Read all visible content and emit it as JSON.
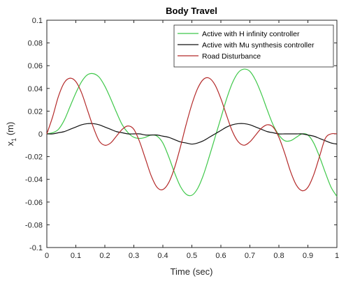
{
  "chart_data": {
    "type": "line",
    "title": "Body Travel",
    "xlabel": "Time (sec)",
    "ylabel_main": "x",
    "ylabel_sub": "1",
    "ylabel_unit": " (m)",
    "xlim": [
      0,
      1
    ],
    "ylim": [
      -0.1,
      0.1
    ],
    "xticks": [
      0,
      0.1,
      0.2,
      0.3,
      0.4,
      0.5,
      0.6,
      0.7,
      0.8,
      0.9,
      1
    ],
    "xtick_labels": [
      "0",
      "0.1",
      "0.2",
      "0.3",
      "0.4",
      "0.5",
      "0.6",
      "0.7",
      "0.8",
      "0.9",
      "1"
    ],
    "yticks": [
      -0.1,
      -0.08,
      -0.06,
      -0.04,
      -0.02,
      0,
      0.02,
      0.04,
      0.06,
      0.08,
      0.1
    ],
    "ytick_labels": [
      "-0.1",
      "-0.08",
      "-0.06",
      "-0.04",
      "-0.02",
      "0",
      "0.02",
      "0.04",
      "0.06",
      "0.08",
      "0.1"
    ],
    "grid": false,
    "legend_position": "top-right",
    "series": [
      {
        "name": "Active with H infinity controller",
        "color": "#3fc84a",
        "x": [
          0,
          0.02,
          0.04,
          0.06,
          0.08,
          0.1,
          0.12,
          0.14,
          0.16,
          0.18,
          0.2,
          0.22,
          0.24,
          0.26,
          0.28,
          0.3,
          0.32,
          0.34,
          0.36,
          0.38,
          0.4,
          0.42,
          0.44,
          0.46,
          0.48,
          0.5,
          0.52,
          0.54,
          0.56,
          0.58,
          0.6,
          0.62,
          0.64,
          0.66,
          0.68,
          0.7,
          0.72,
          0.74,
          0.76,
          0.78,
          0.8,
          0.82,
          0.84,
          0.86,
          0.88,
          0.9,
          0.92,
          0.94,
          0.96,
          0.98,
          1
        ],
        "y": [
          0,
          0.001,
          0.004,
          0.012,
          0.024,
          0.036,
          0.046,
          0.052,
          0.053,
          0.05,
          0.042,
          0.031,
          0.019,
          0.008,
          0.001,
          -0.003,
          -0.004,
          -0.003,
          -0.001,
          -0.002,
          -0.008,
          -0.02,
          -0.034,
          -0.046,
          -0.053,
          -0.054,
          -0.048,
          -0.036,
          -0.02,
          -0.003,
          0.014,
          0.031,
          0.045,
          0.054,
          0.057,
          0.055,
          0.047,
          0.035,
          0.021,
          0.008,
          -0.001,
          -0.006,
          -0.006,
          -0.003,
          0,
          -0.001,
          -0.008,
          -0.02,
          -0.034,
          -0.047,
          -0.055
        ]
      },
      {
        "name": "Active with Mu synthesis controller",
        "color": "#111111",
        "x": [
          0,
          0.02,
          0.04,
          0.06,
          0.08,
          0.1,
          0.12,
          0.14,
          0.16,
          0.18,
          0.2,
          0.22,
          0.24,
          0.26,
          0.28,
          0.3,
          0.32,
          0.34,
          0.36,
          0.38,
          0.4,
          0.42,
          0.44,
          0.46,
          0.48,
          0.5,
          0.52,
          0.54,
          0.56,
          0.58,
          0.6,
          0.62,
          0.64,
          0.66,
          0.68,
          0.7,
          0.72,
          0.74,
          0.76,
          0.78,
          0.8,
          0.82,
          0.84,
          0.86,
          0.88,
          0.9,
          0.92,
          0.94,
          0.96,
          0.98,
          1
        ],
        "y": [
          0,
          0,
          0.001,
          0.002,
          0.004,
          0.006,
          0.008,
          0.009,
          0.009,
          0.008,
          0.006,
          0.004,
          0.002,
          0.001,
          0,
          0,
          0,
          -0.001,
          -0.001,
          -0.001,
          -0.002,
          -0.003,
          -0.005,
          -0.007,
          -0.008,
          -0.009,
          -0.008,
          -0.006,
          -0.003,
          0,
          0.003,
          0.006,
          0.008,
          0.009,
          0.009,
          0.008,
          0.006,
          0.004,
          0.002,
          0.001,
          0,
          0,
          0,
          0,
          0,
          -0.001,
          -0.002,
          -0.004,
          -0.006,
          -0.008,
          -0.009
        ]
      },
      {
        "name": "Road Disturbance",
        "color": "#b42a2a",
        "x": [
          0,
          0.02,
          0.04,
          0.06,
          0.08,
          0.1,
          0.12,
          0.14,
          0.16,
          0.18,
          0.2,
          0.22,
          0.24,
          0.26,
          0.28,
          0.3,
          0.32,
          0.34,
          0.36,
          0.38,
          0.4,
          0.42,
          0.44,
          0.46,
          0.48,
          0.5,
          0.52,
          0.54,
          0.56,
          0.58,
          0.6,
          0.62,
          0.64,
          0.66,
          0.68,
          0.7,
          0.72,
          0.74,
          0.76,
          0.78,
          0.8,
          0.82,
          0.84,
          0.86,
          0.88,
          0.9,
          0.92,
          0.94,
          0.96,
          0.98,
          1
        ],
        "y": [
          0,
          0.015,
          0.033,
          0.045,
          0.049,
          0.046,
          0.036,
          0.021,
          0.006,
          -0.006,
          -0.01,
          -0.008,
          -0.002,
          0.004,
          0.007,
          0.004,
          -0.007,
          -0.022,
          -0.037,
          -0.047,
          -0.049,
          -0.043,
          -0.03,
          -0.012,
          0.008,
          0.026,
          0.04,
          0.048,
          0.049,
          0.043,
          0.031,
          0.016,
          0.002,
          -0.007,
          -0.01,
          -0.007,
          -0.001,
          0.005,
          0.008,
          0.006,
          -0.003,
          -0.017,
          -0.033,
          -0.045,
          -0.05,
          -0.047,
          -0.036,
          -0.02,
          -0.004,
          0,
          0
        ]
      }
    ]
  }
}
